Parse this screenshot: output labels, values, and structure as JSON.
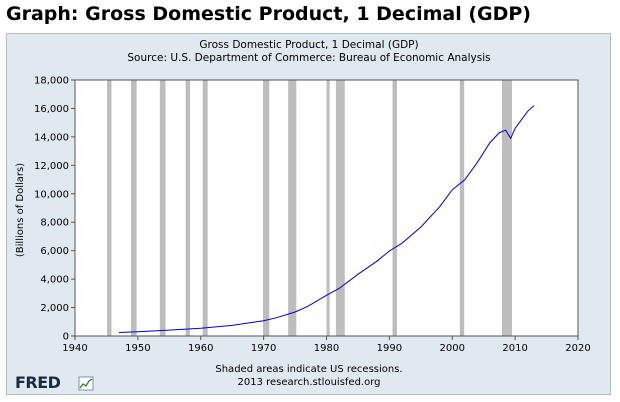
{
  "page": {
    "title": "Graph: Gross Domestic Product, 1 Decimal (GDP)"
  },
  "logo": {
    "text": "FRED"
  },
  "chart_data": {
    "type": "line",
    "title": "Gross Domestic Product, 1 Decimal (GDP)",
    "subtitle": "Source: U.S. Department of Commerce: Bureau of Economic Analysis",
    "xlabel": "",
    "ylabel": "(Billions of Dollars)",
    "xlim": [
      1940,
      2020
    ],
    "ylim": [
      0,
      18000
    ],
    "xticks": [
      1940,
      1950,
      1960,
      1970,
      1980,
      1990,
      2000,
      2010,
      2020
    ],
    "yticks": [
      0,
      2000,
      4000,
      6000,
      8000,
      10000,
      12000,
      14000,
      16000,
      18000
    ],
    "ytick_labels": [
      "0",
      "2,000",
      "4,000",
      "6,000",
      "8,000",
      "10,000",
      "12,000",
      "14,000",
      "16,000",
      "18,000"
    ],
    "grid": false,
    "line_color": "#0000cc",
    "recession_color": "#bdbdbd",
    "recessions": [
      [
        1945.1,
        1945.8
      ],
      [
        1948.9,
        1949.8
      ],
      [
        1953.5,
        1954.4
      ],
      [
        1957.6,
        1958.3
      ],
      [
        1960.3,
        1961.1
      ],
      [
        1969.9,
        1970.9
      ],
      [
        1973.9,
        1975.2
      ],
      [
        1980.0,
        1980.5
      ],
      [
        1981.5,
        1982.9
      ],
      [
        1990.5,
        1991.2
      ],
      [
        2001.2,
        2001.9
      ],
      [
        2007.9,
        2009.5
      ]
    ],
    "x": [
      1947,
      1950,
      1955,
      1960,
      1965,
      1970,
      1972,
      1975,
      1977,
      1980,
      1982,
      1985,
      1988,
      1990,
      1992,
      1995,
      1998,
      2000,
      2002,
      2004,
      2006,
      2007.5,
      2008.5,
      2009.3,
      2010,
      2011,
      2012,
      2013
    ],
    "values": [
      243,
      300,
      415,
      543,
      743,
      1075,
      1280,
      1685,
      2080,
      2860,
      3340,
      4340,
      5250,
      5980,
      6520,
      7660,
      9090,
      10290,
      10980,
      12210,
      13600,
      14300,
      14470,
      13900,
      14600,
      15200,
      15800,
      16200
    ]
  },
  "footer": {
    "line1": "Shaded areas indicate US recessions.",
    "line2": "2013 research.stlouisfed.org"
  }
}
